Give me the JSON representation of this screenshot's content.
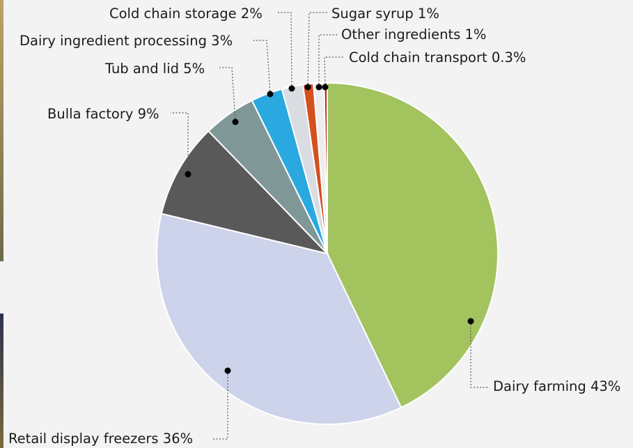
{
  "chart_data": {
    "type": "pie",
    "start_angle_deg": 0,
    "direction": "clockwise",
    "slices": [
      {
        "label": "Dairy farming 43%",
        "value": 43,
        "color": "#a2c35e"
      },
      {
        "label": "Retail display freezers 36%",
        "value": 36,
        "color": "#ccd3ea"
      },
      {
        "label": "Bulla factory 9%",
        "value": 9,
        "color": "#595959"
      },
      {
        "label": "Tub and lid 5%",
        "value": 5,
        "color": "#7f9897"
      },
      {
        "label": "Dairy ingredient processing 3%",
        "value": 3,
        "color": "#2aa8e0"
      },
      {
        "label": "Cold chain storage 2%",
        "value": 2,
        "color": "#d9dde2"
      },
      {
        "label": "Sugar syrup 1%",
        "value": 1,
        "color": "#d4501f"
      },
      {
        "label": "Other ingredients 1%",
        "value": 1,
        "color": "#ededed"
      },
      {
        "label": "Cold chain transport 0.3%",
        "value": 0.3,
        "color": "#b42a2a"
      }
    ]
  }
}
